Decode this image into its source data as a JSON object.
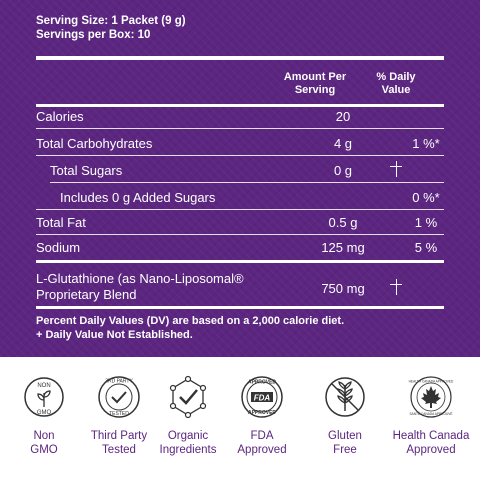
{
  "serving": {
    "size": "Serving Size: 1 Packet (9 g)",
    "per_box": "Servings per Box: 10"
  },
  "header": {
    "amount_line1": "Amount Per",
    "amount_line2": "Serving",
    "dv_line1": "% Daily",
    "dv_line2": "Value"
  },
  "rows": [
    {
      "label": "Calories",
      "amount": "20",
      "dv": ""
    },
    {
      "label": "Total Carbohydrates",
      "amount": "4 g",
      "dv": "1 %*"
    },
    {
      "label": "Total Sugars",
      "amount": "0 g",
      "dv": ""
    },
    {
      "label": "Includes 0 g Added Sugars",
      "amount": "",
      "dv": "0 %*"
    },
    {
      "label": "Total Fat",
      "amount": "0.5 g",
      "dv": "1 %"
    },
    {
      "label": "Sodium",
      "amount": "125 mg",
      "dv": "5 %"
    },
    {
      "label_line1": "L-Glutathione (as Nano-Liposomal®",
      "label_line2": "Proprietary Blend",
      "amount": "750 mg",
      "dv": ""
    }
  ],
  "footnote": {
    "line1": "Percent Daily Values (DV) are based on a 2,000 calorie diet.",
    "line2": "+ Daily Value Not Established."
  },
  "badges": [
    {
      "icon": "non-gmo-icon",
      "seal_top": "NON",
      "seal_bottom": "GMO",
      "cap1": "Non",
      "cap2": "GMO"
    },
    {
      "icon": "third-party-tested-icon",
      "seal_top": "3RD PARTY",
      "seal_bottom": "TESTED",
      "cap1": "Third Party",
      "cap2": "Tested"
    },
    {
      "icon": "organic-ingredients-icon",
      "cap1": "Organic",
      "cap2": "Ingredients"
    },
    {
      "icon": "fda-approved-icon",
      "seal_top": "APPROVED",
      "seal_mid": "FDA",
      "seal_bottom": "APPROVED",
      "cap1": "FDA",
      "cap2": "Approved"
    },
    {
      "icon": "gluten-free-icon",
      "cap1": "Gluten",
      "cap2": "Free"
    },
    {
      "icon": "health-canada-icon",
      "seal_top": "HEALTH CANADA APPROVED",
      "seal_bottom": "SANTÉ CANADA APPROUVÉ",
      "cap1": "Health Canada",
      "cap2": "Approved"
    }
  ],
  "colors": {
    "panel": "#5b2580",
    "badge_text": "#5b2580",
    "badge_icon": "#333333"
  }
}
